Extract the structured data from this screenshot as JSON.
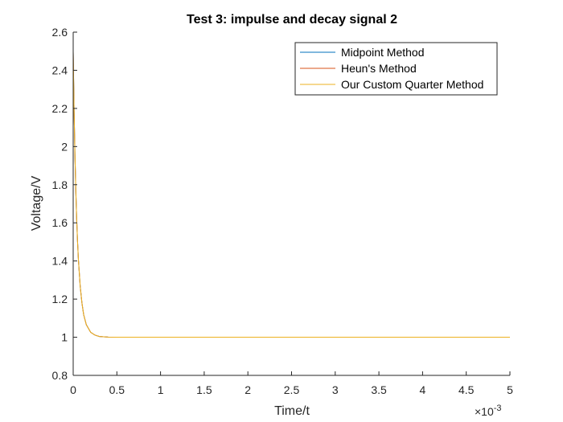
{
  "chart_data": {
    "type": "line",
    "title": "Test 3: impulse and decay signal 2",
    "xlabel": "Time/t",
    "ylabel": "Voltage/V",
    "x_exponent_base": "×10",
    "x_exponent_power": "-3",
    "xlim": [
      0,
      0.005
    ],
    "ylim": [
      0.8,
      2.6
    ],
    "x_ticks": [
      0,
      0.0005,
      0.001,
      0.0015,
      0.002,
      0.0025,
      0.003,
      0.0035,
      0.004,
      0.0045,
      0.005
    ],
    "x_tick_labels": [
      "0",
      "0.5",
      "1",
      "1.5",
      "2",
      "2.5",
      "3",
      "3.5",
      "4",
      "4.5",
      "5"
    ],
    "y_ticks": [
      0.8,
      1.0,
      1.2,
      1.4,
      1.6,
      1.8,
      2.0,
      2.2,
      2.4,
      2.6
    ],
    "y_tick_labels": [
      "0.8",
      "1",
      "1.2",
      "1.4",
      "1.6",
      "1.8",
      "2",
      "2.2",
      "2.4",
      "2.6"
    ],
    "grid": false,
    "legend_position": "top-right",
    "series": [
      {
        "name": "Midpoint Method",
        "color": "#0072BD",
        "x": [
          0,
          1e-05,
          2e-05,
          3e-05,
          4e-05,
          5e-05,
          6e-05,
          8e-05,
          0.0001,
          0.00012,
          0.00015,
          0.0002,
          0.00025,
          0.0003,
          0.0004,
          0.0005,
          0.001,
          0.002,
          0.003,
          0.004,
          0.005
        ],
        "y": [
          2.5,
          2.198,
          1.96,
          1.77,
          1.619,
          1.5,
          1.405,
          1.269,
          1.18,
          1.118,
          1.066,
          1.026,
          1.011,
          1.004,
          1.001,
          1.0,
          1.0,
          1.0,
          1.0,
          1.0,
          1.0
        ]
      },
      {
        "name": "Heun's Method",
        "color": "#D95319",
        "x": [
          0,
          1e-05,
          2e-05,
          3e-05,
          4e-05,
          5e-05,
          6e-05,
          8e-05,
          0.0001,
          0.00012,
          0.00015,
          0.0002,
          0.00025,
          0.0003,
          0.0004,
          0.0005,
          0.001,
          0.002,
          0.003,
          0.004,
          0.005
        ],
        "y": [
          2.5,
          2.198,
          1.96,
          1.77,
          1.619,
          1.5,
          1.405,
          1.269,
          1.18,
          1.118,
          1.066,
          1.026,
          1.011,
          1.004,
          1.001,
          1.0,
          1.0,
          1.0,
          1.0,
          1.0,
          1.0
        ]
      },
      {
        "name": "Our Custom Quarter Method",
        "color": "#EDB120",
        "x": [
          0,
          1e-05,
          2e-05,
          3e-05,
          4e-05,
          5e-05,
          6e-05,
          8e-05,
          0.0001,
          0.00012,
          0.00015,
          0.0002,
          0.00025,
          0.0003,
          0.0004,
          0.0005,
          0.001,
          0.002,
          0.003,
          0.004,
          0.005
        ],
        "y": [
          2.5,
          2.198,
          1.96,
          1.77,
          1.619,
          1.5,
          1.405,
          1.269,
          1.18,
          1.118,
          1.066,
          1.026,
          1.011,
          1.004,
          1.001,
          1.0,
          1.0,
          1.0,
          1.0,
          1.0,
          1.0
        ]
      }
    ]
  }
}
